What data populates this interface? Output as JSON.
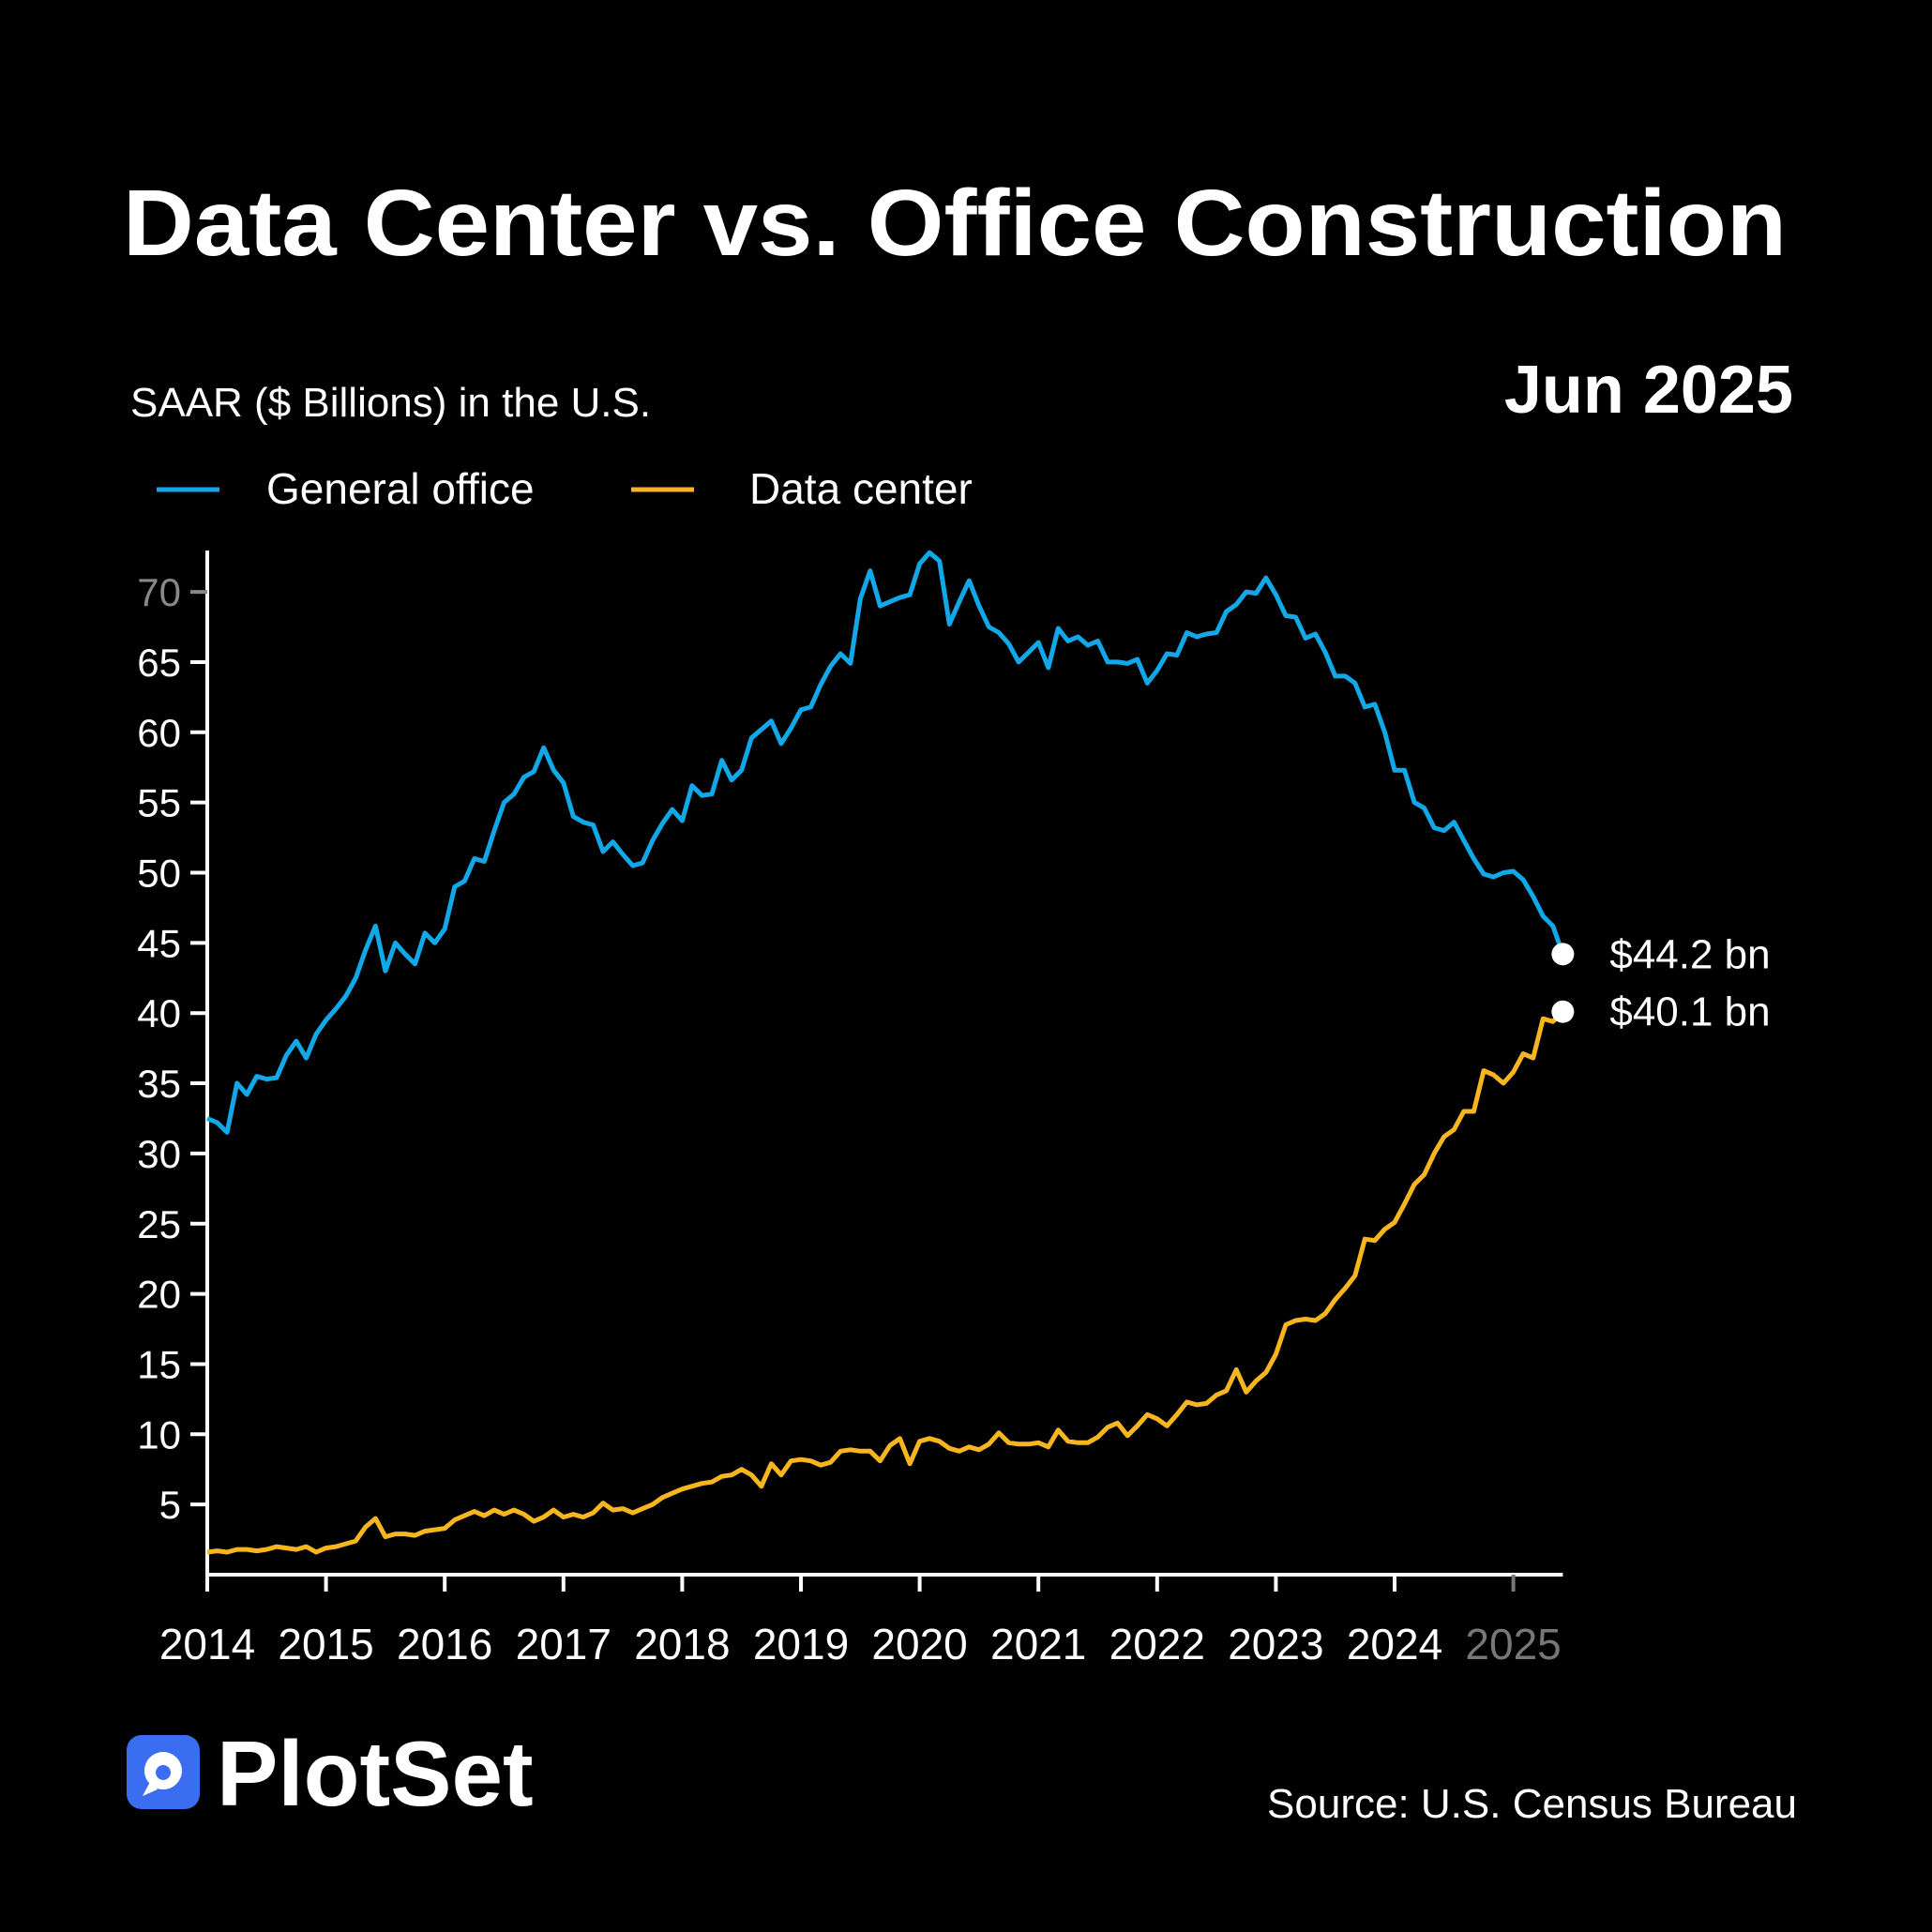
{
  "title": "Data Center vs. Office Construction",
  "date_label": "Jun 2025",
  "subtitle": "SAAR ($ Billions) in the U.S.",
  "source": "Source: U.S. Census Bureau",
  "brand": "PlotSet",
  "colors": {
    "general_office": "#12a8e8",
    "data_center": "#f7b61f",
    "background": "#000000",
    "logo": "#3a6df0"
  },
  "chart_data": {
    "type": "line",
    "title": "Data Center vs. Office Construction",
    "ylabel": "SAAR ($ Billions) in the U.S.",
    "ylim": [
      0,
      73
    ],
    "xlim": [
      "2014-01",
      "2025-06"
    ],
    "yticks": [
      5,
      10,
      15,
      20,
      25,
      30,
      35,
      40,
      45,
      50,
      55,
      60,
      65,
      70
    ],
    "xticks": [
      "2014",
      "2015",
      "2016",
      "2017",
      "2018",
      "2019",
      "2020",
      "2021",
      "2022",
      "2023",
      "2024",
      "2025"
    ],
    "grid": false,
    "legend_placement": "top-left",
    "frequency": "monthly",
    "x": [
      "2014-01",
      "2014-02",
      "2014-03",
      "2014-04",
      "2014-05",
      "2014-06",
      "2014-07",
      "2014-08",
      "2014-09",
      "2014-10",
      "2014-11",
      "2014-12",
      "2015-01",
      "2015-02",
      "2015-03",
      "2015-04",
      "2015-05",
      "2015-06",
      "2015-07",
      "2015-08",
      "2015-09",
      "2015-10",
      "2015-11",
      "2015-12",
      "2016-01",
      "2016-02",
      "2016-03",
      "2016-04",
      "2016-05",
      "2016-06",
      "2016-07",
      "2016-08",
      "2016-09",
      "2016-10",
      "2016-11",
      "2016-12",
      "2017-01",
      "2017-02",
      "2017-03",
      "2017-04",
      "2017-05",
      "2017-06",
      "2017-07",
      "2017-08",
      "2017-09",
      "2017-10",
      "2017-11",
      "2017-12",
      "2018-01",
      "2018-02",
      "2018-03",
      "2018-04",
      "2018-05",
      "2018-06",
      "2018-07",
      "2018-08",
      "2018-09",
      "2018-10",
      "2018-11",
      "2018-12",
      "2019-01",
      "2019-02",
      "2019-03",
      "2019-04",
      "2019-05",
      "2019-06",
      "2019-07",
      "2019-08",
      "2019-09",
      "2019-10",
      "2019-11",
      "2019-12",
      "2020-01",
      "2020-02",
      "2020-03",
      "2020-04",
      "2020-05",
      "2020-06",
      "2020-07",
      "2020-08",
      "2020-09",
      "2020-10",
      "2020-11",
      "2020-12",
      "2021-01",
      "2021-02",
      "2021-03",
      "2021-04",
      "2021-05",
      "2021-06",
      "2021-07",
      "2021-08",
      "2021-09",
      "2021-10",
      "2021-11",
      "2021-12",
      "2022-01",
      "2022-02",
      "2022-03",
      "2022-04",
      "2022-05",
      "2022-06",
      "2022-07",
      "2022-08",
      "2022-09",
      "2022-10",
      "2022-11",
      "2022-12",
      "2023-01",
      "2023-02",
      "2023-03",
      "2023-04",
      "2023-05",
      "2023-06",
      "2023-07",
      "2023-08",
      "2023-09",
      "2023-10",
      "2023-11",
      "2023-12",
      "2024-01",
      "2024-02",
      "2024-03",
      "2024-04",
      "2024-05",
      "2024-06",
      "2024-07",
      "2024-08",
      "2024-09",
      "2024-10",
      "2024-11",
      "2024-12",
      "2025-01",
      "2025-02",
      "2025-03",
      "2025-04",
      "2025-05",
      "2025-06"
    ],
    "series": [
      {
        "name": "General office",
        "color": "#12a8e8",
        "end_label": "$44.2 bn",
        "values": [
          32.5,
          32.2,
          31.5,
          35,
          34.2,
          35.5,
          35.3,
          35.4,
          37,
          38,
          36.8,
          38.5,
          39.5,
          40.3,
          41.2,
          42.5,
          44.5,
          46.2,
          43,
          45,
          44.2,
          43.5,
          45.7,
          45,
          46,
          49,
          49.4,
          51,
          50.8,
          53,
          55,
          55.6,
          56.8,
          57.2,
          58.9,
          57.3,
          56.4,
          54,
          53.6,
          53.4,
          51.5,
          52.2,
          51.3,
          50.5,
          50.7,
          52.3,
          53.5,
          54.5,
          53.7,
          56.2,
          55.5,
          55.6,
          58,
          56.6,
          57.3,
          59.6,
          60.2,
          60.8,
          59.2,
          60.3,
          61.6,
          61.8,
          63.4,
          64.7,
          65.6,
          64.9,
          69.5,
          71.5,
          69,
          69.3,
          69.6,
          69.8,
          72,
          72.8,
          72.2,
          67.7,
          69.3,
          70.8,
          69,
          67.5,
          67.1,
          66.3,
          65,
          65.7,
          66.4,
          64.6,
          67.4,
          66.5,
          66.8,
          66.2,
          66.5,
          65,
          65,
          64.9,
          65.2,
          63.5,
          64.4,
          65.6,
          65.5,
          67.1,
          66.8,
          67,
          67.1,
          68.6,
          69.1,
          70,
          69.9,
          71,
          69.8,
          68.3,
          68.2,
          66.7,
          67,
          65.7,
          64,
          64,
          63.5,
          61.8,
          62,
          60,
          57.3,
          57.3,
          55,
          54.6,
          53.2,
          53,
          53.6,
          52.3,
          51,
          49.9,
          49.7,
          50,
          50.1,
          49.5,
          48.3,
          46.9,
          46.2,
          44.2
        ]
      },
      {
        "name": "Data center",
        "color": "#f7b61f",
        "end_label": "$40.1 bn",
        "values": [
          1.6,
          1.7,
          1.6,
          1.8,
          1.8,
          1.7,
          1.8,
          2.0,
          1.9,
          1.8,
          2.0,
          1.6,
          1.9,
          2.0,
          2.2,
          2.4,
          3.4,
          4.0,
          2.7,
          2.9,
          2.9,
          2.8,
          3.1,
          3.2,
          3.3,
          3.9,
          4.2,
          4.5,
          4.2,
          4.6,
          4.3,
          4.6,
          4.3,
          3.8,
          4.1,
          4.6,
          4.1,
          4.3,
          4.1,
          4.4,
          5.1,
          4.6,
          4.7,
          4.4,
          4.7,
          5.0,
          5.5,
          5.8,
          6.1,
          6.3,
          6.5,
          6.6,
          7.0,
          7.1,
          7.5,
          7.1,
          6.3,
          7.9,
          7.1,
          8.1,
          8.2,
          8.1,
          7.8,
          8.0,
          8.8,
          8.9,
          8.8,
          8.8,
          8.1,
          9.2,
          9.7,
          7.9,
          9.5,
          9.7,
          9.5,
          9.0,
          8.8,
          9.1,
          8.9,
          9.3,
          10.1,
          9.4,
          9.3,
          9.3,
          9.4,
          9.1,
          10.3,
          9.5,
          9.4,
          9.4,
          9.8,
          10.5,
          10.8,
          9.9,
          10.6,
          11.4,
          11.1,
          10.6,
          11.4,
          12.3,
          12.1,
          12.2,
          12.8,
          13.1,
          14.6,
          13.0,
          13.8,
          14.4,
          15.7,
          17.8,
          18.1,
          18.2,
          18.1,
          18.6,
          19.6,
          20.4,
          21.3,
          23.9,
          23.8,
          24.6,
          25.1,
          26.4,
          27.8,
          28.5,
          30.0,
          31.2,
          31.7,
          33.0,
          33.0,
          35.9,
          35.6,
          35.0,
          35.8,
          37.1,
          36.8,
          39.6,
          39.4,
          40.1
        ]
      }
    ]
  }
}
